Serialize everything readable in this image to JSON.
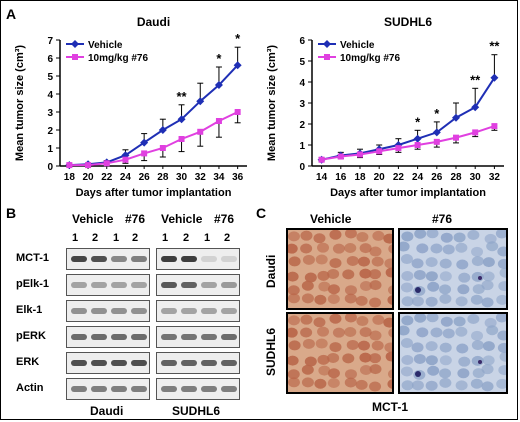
{
  "panels": {
    "A": "A",
    "B": "B",
    "C": "C"
  },
  "chart_data": [
    {
      "type": "line",
      "title": "Daudi",
      "xlabel": "Days after tumor implantation",
      "ylabel": "Mean tumor size (cm³)",
      "x": [
        18,
        20,
        22,
        24,
        26,
        28,
        30,
        32,
        34,
        36
      ],
      "ylim": [
        0,
        7
      ],
      "yticks": [
        0,
        1,
        2,
        3,
        4,
        5,
        6,
        7
      ],
      "legend_position": "top-left",
      "series": [
        {
          "name": "Vehicle",
          "values": [
            0.05,
            0.1,
            0.2,
            0.6,
            1.3,
            2.0,
            2.6,
            3.6,
            4.5,
            5.6
          ],
          "err": [
            0.05,
            0.05,
            0.1,
            0.3,
            0.5,
            0.6,
            0.8,
            1.0,
            1.0,
            1.0
          ]
        },
        {
          "name": "10mg/kg #76",
          "values": [
            0.05,
            0.05,
            0.15,
            0.35,
            0.7,
            1.0,
            1.5,
            1.9,
            2.5,
            3.0
          ],
          "err": [
            0.05,
            0.05,
            0.1,
            0.2,
            0.4,
            0.5,
            0.7,
            0.8,
            0.9,
            0.6
          ]
        }
      ],
      "significance": [
        {
          "x": 30,
          "label": "**"
        },
        {
          "x": 34,
          "label": "*"
        },
        {
          "x": 36,
          "label": "*"
        }
      ],
      "color_vehicle": "#1f2fb5",
      "color_drug": "#e040e0"
    },
    {
      "type": "line",
      "title": "SUDHL6",
      "xlabel": "Days after tumor implantation",
      "ylabel": "Mean tumor size (cm³)",
      "x": [
        14,
        16,
        18,
        20,
        22,
        24,
        26,
        28,
        30,
        32
      ],
      "ylim": [
        0,
        6
      ],
      "yticks": [
        0,
        1,
        2,
        3,
        4,
        5,
        6
      ],
      "legend_position": "top-left",
      "series": [
        {
          "name": "Vehicle",
          "values": [
            0.3,
            0.5,
            0.6,
            0.8,
            1.0,
            1.3,
            1.6,
            2.3,
            2.8,
            4.2
          ],
          "err": [
            0.1,
            0.15,
            0.2,
            0.2,
            0.3,
            0.4,
            0.5,
            0.7,
            0.9,
            1.1
          ]
        },
        {
          "name": "10mg/kg #76",
          "values": [
            0.3,
            0.45,
            0.55,
            0.7,
            0.85,
            1.0,
            1.15,
            1.35,
            1.6,
            1.9
          ],
          "err": [
            0.1,
            0.1,
            0.15,
            0.15,
            0.2,
            0.2,
            0.25,
            0.25,
            0.2,
            0.2
          ]
        }
      ],
      "significance": [
        {
          "x": 24,
          "label": "*"
        },
        {
          "x": 26,
          "label": "*"
        },
        {
          "x": 30,
          "label": "**"
        },
        {
          "x": 32,
          "label": "**"
        }
      ],
      "color_vehicle": "#1f2fb5",
      "color_drug": "#e040e0"
    }
  ],
  "western": {
    "groups": [
      "Vehicle",
      "#76",
      "Vehicle",
      "#76"
    ],
    "lanes": [
      "1",
      "2",
      "1",
      "2",
      "1",
      "2",
      "1",
      "2"
    ],
    "rows": [
      "MCT-1",
      "pElk-1",
      "Elk-1",
      "pERK",
      "ERK",
      "Actin"
    ],
    "cell_lines": [
      "Daudi",
      "SUDHL6"
    ],
    "intensity_daudi": [
      [
        0.9,
        0.85,
        0.55,
        0.6
      ],
      [
        0.4,
        0.4,
        0.4,
        0.4
      ],
      [
        0.5,
        0.5,
        0.5,
        0.5
      ],
      [
        0.7,
        0.7,
        0.7,
        0.7
      ],
      [
        0.85,
        0.85,
        0.85,
        0.85
      ],
      [
        0.6,
        0.6,
        0.6,
        0.6
      ]
    ],
    "intensity_sudhl6": [
      [
        0.95,
        0.95,
        0.15,
        0.15
      ],
      [
        0.8,
        0.75,
        0.4,
        0.45
      ],
      [
        0.4,
        0.4,
        0.4,
        0.4
      ],
      [
        0.65,
        0.65,
        0.65,
        0.7
      ],
      [
        0.75,
        0.75,
        0.75,
        0.75
      ],
      [
        0.6,
        0.6,
        0.6,
        0.6
      ]
    ]
  },
  "ihc": {
    "columns": [
      "Vehicle",
      "#76"
    ],
    "rows": [
      "Daudi",
      "SUDHL6"
    ],
    "caption": "MCT-1",
    "stain_positive": "#c47a5a",
    "stain_negative": "#9bb0d0"
  }
}
